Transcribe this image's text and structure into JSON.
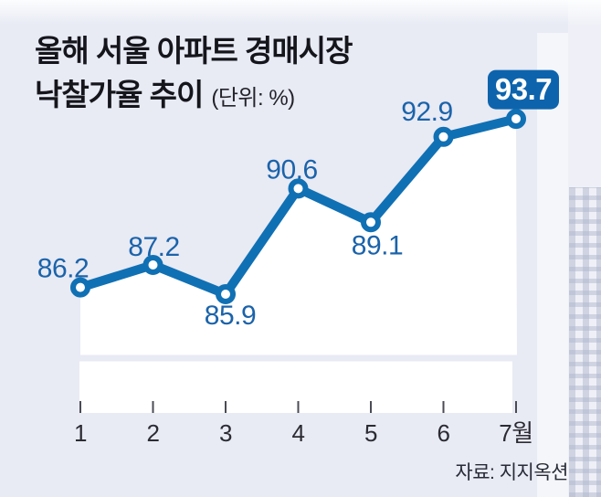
{
  "title": {
    "line1": "올해 서울 아파트 경매시장",
    "line2": "낙찰가율 추이",
    "unit_note": "(단위: %)"
  },
  "source": "자료: 지지옥션",
  "colors": {
    "background": "#e8eaf4",
    "plot_fill": "#ffffff",
    "line": "#1070b4",
    "marker_fill": "#ffffff",
    "value_label": "#1b63aa",
    "badge_bg": "#0d64ad",
    "badge_text": "#ffffff",
    "axis_text": "#2b2b33",
    "tick": "#4b4b55",
    "title_text": "#15151c",
    "source_text": "#272b36"
  },
  "chart_data": {
    "type": "line",
    "title": "올해 서울 아파트 경매시장 낙찰가율 추이",
    "unit": "%",
    "categories": [
      "1",
      "2",
      "3",
      "4",
      "5",
      "6",
      "7월"
    ],
    "values": [
      86.2,
      87.2,
      85.9,
      90.6,
      89.1,
      92.9,
      93.7
    ],
    "highlight_index": 6,
    "highlight_value": "93.7",
    "label_positions": [
      "above-left",
      "above",
      "below",
      "above",
      "below",
      "above",
      "badge"
    ],
    "grid": false,
    "legend": false,
    "y_axis_visible": false
  }
}
